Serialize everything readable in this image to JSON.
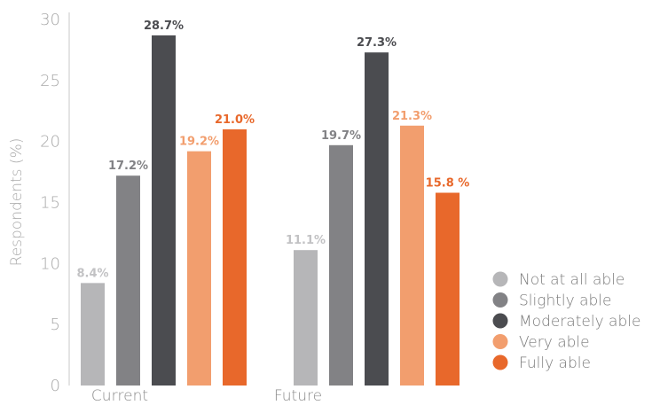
{
  "chart_data": {
    "type": "bar",
    "title": "",
    "xlabel": "",
    "ylabel": "Respondents (%)",
    "ylim": [
      0,
      30
    ],
    "yticks": [
      0,
      5,
      10,
      15,
      20,
      25,
      30
    ],
    "grid": false,
    "legend_position": "right",
    "categories": [
      "Current",
      "Future"
    ],
    "series": [
      {
        "name": "Not at all able",
        "color": "#b6b6b8",
        "values": [
          8.4,
          11.1
        ],
        "labels": [
          "8.4%",
          "11.1%"
        ]
      },
      {
        "name": "Slightly able",
        "color": "#828285",
        "values": [
          17.2,
          19.7
        ],
        "labels": [
          "17.2%",
          "19.7%"
        ]
      },
      {
        "name": "Moderately able",
        "color": "#4b4c50",
        "values": [
          28.7,
          27.3
        ],
        "labels": [
          "28.7%",
          "27.3%"
        ]
      },
      {
        "name": "Very able",
        "color": "#f29e6e",
        "values": [
          19.2,
          21.3
        ],
        "labels": [
          "19.2%",
          "21.3%"
        ]
      },
      {
        "name": "Fully able",
        "color": "#e8682b",
        "values": [
          21.0,
          15.8
        ],
        "labels": [
          "21.0%",
          "15.8 %"
        ]
      }
    ]
  }
}
